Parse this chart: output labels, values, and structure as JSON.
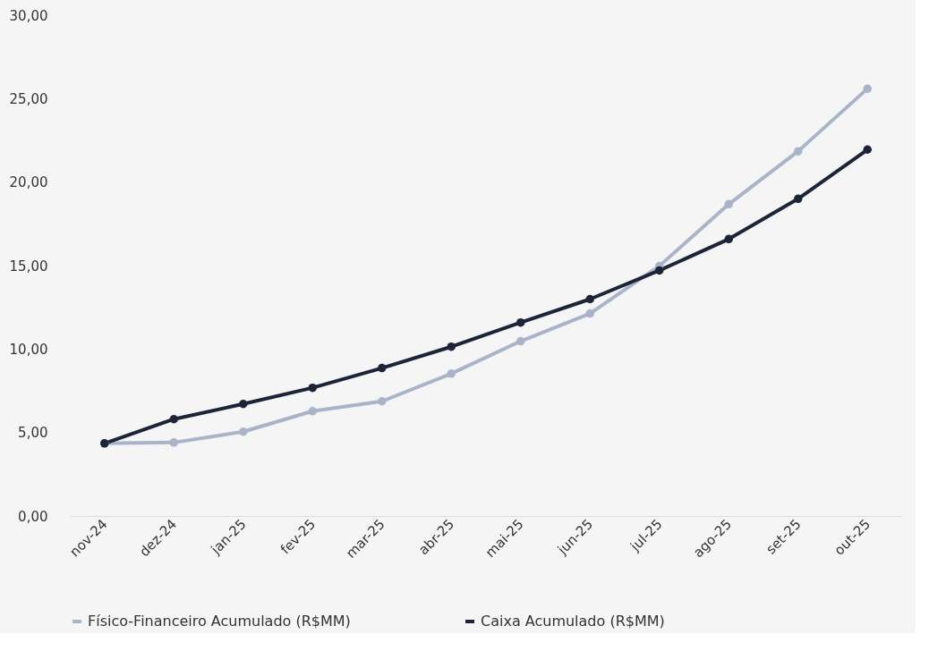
{
  "chart_data": {
    "type": "line",
    "categories": [
      "nov-24",
      "dez-24",
      "jan-25",
      "fev-25",
      "mar-25",
      "abr-25",
      "mai-25",
      "jun-25",
      "jul-25",
      "ago-25",
      "set-25",
      "out-25"
    ],
    "series": [
      {
        "name": "Físico-Financeiro Acumulado (R$MM)",
        "color": "#aab4c8",
        "values": [
          4.35,
          4.4,
          5.05,
          6.28,
          6.87,
          8.53,
          10.47,
          12.13,
          14.98,
          18.68,
          21.85,
          25.6
        ]
      },
      {
        "name": "Caixa Acumulado (R$MM)",
        "color": "#1b2537",
        "values": [
          4.35,
          5.8,
          6.71,
          7.68,
          8.86,
          10.14,
          11.59,
          12.99,
          14.71,
          16.59,
          19.0,
          21.95
        ]
      }
    ],
    "ylim": [
      0,
      30
    ],
    "yticks": [
      {
        "value": 0,
        "label": "0,00"
      },
      {
        "value": 5,
        "label": "5,00"
      },
      {
        "value": 10,
        "label": "10,00"
      },
      {
        "value": 15,
        "label": "15,00"
      },
      {
        "value": 20,
        "label": "20,00"
      },
      {
        "value": 25,
        "label": "25,00"
      },
      {
        "value": 30,
        "label": "30,00"
      }
    ],
    "grid": false,
    "legend": "bottom",
    "marker": "circle",
    "line_style": "solid"
  }
}
